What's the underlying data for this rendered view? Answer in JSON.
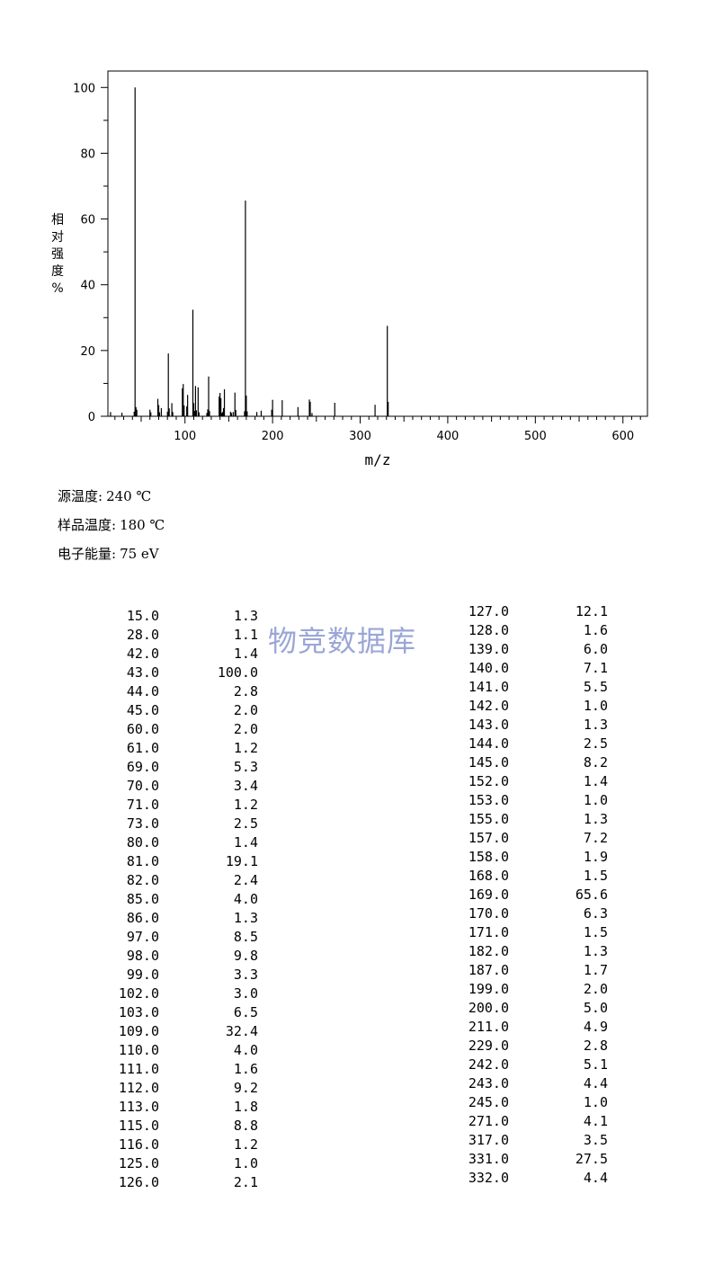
{
  "chart_data": {
    "type": "bar",
    "xlabel": "m/z",
    "ylabel": "相对强度%",
    "xlim": [
      12,
      628
    ],
    "ylim": [
      0,
      105
    ],
    "x_ticks": [
      100,
      200,
      300,
      400,
      500,
      600
    ],
    "y_ticks": [
      0,
      20,
      40,
      60,
      80,
      100
    ],
    "grid": false,
    "peaks": [
      {
        "mz": 15.0,
        "intensity": 1.3
      },
      {
        "mz": 28.0,
        "intensity": 1.1
      },
      {
        "mz": 42.0,
        "intensity": 1.4
      },
      {
        "mz": 43.0,
        "intensity": 100.0
      },
      {
        "mz": 44.0,
        "intensity": 2.8
      },
      {
        "mz": 45.0,
        "intensity": 2.0
      },
      {
        "mz": 60.0,
        "intensity": 2.0
      },
      {
        "mz": 61.0,
        "intensity": 1.2
      },
      {
        "mz": 69.0,
        "intensity": 5.3
      },
      {
        "mz": 70.0,
        "intensity": 3.4
      },
      {
        "mz": 71.0,
        "intensity": 1.2
      },
      {
        "mz": 73.0,
        "intensity": 2.5
      },
      {
        "mz": 80.0,
        "intensity": 1.4
      },
      {
        "mz": 81.0,
        "intensity": 19.1
      },
      {
        "mz": 82.0,
        "intensity": 2.4
      },
      {
        "mz": 85.0,
        "intensity": 4.0
      },
      {
        "mz": 86.0,
        "intensity": 1.3
      },
      {
        "mz": 97.0,
        "intensity": 8.5
      },
      {
        "mz": 98.0,
        "intensity": 9.8
      },
      {
        "mz": 99.0,
        "intensity": 3.3
      },
      {
        "mz": 102.0,
        "intensity": 3.0
      },
      {
        "mz": 103.0,
        "intensity": 6.5
      },
      {
        "mz": 109.0,
        "intensity": 32.4
      },
      {
        "mz": 110.0,
        "intensity": 4.0
      },
      {
        "mz": 111.0,
        "intensity": 1.6
      },
      {
        "mz": 112.0,
        "intensity": 9.2
      },
      {
        "mz": 113.0,
        "intensity": 1.8
      },
      {
        "mz": 115.0,
        "intensity": 8.8
      },
      {
        "mz": 116.0,
        "intensity": 1.2
      },
      {
        "mz": 125.0,
        "intensity": 1.0
      },
      {
        "mz": 126.0,
        "intensity": 2.1
      },
      {
        "mz": 127.0,
        "intensity": 12.1
      },
      {
        "mz": 128.0,
        "intensity": 1.6
      },
      {
        "mz": 139.0,
        "intensity": 6.0
      },
      {
        "mz": 140.0,
        "intensity": 7.1
      },
      {
        "mz": 141.0,
        "intensity": 5.5
      },
      {
        "mz": 142.0,
        "intensity": 1.0
      },
      {
        "mz": 143.0,
        "intensity": 1.3
      },
      {
        "mz": 144.0,
        "intensity": 2.5
      },
      {
        "mz": 145.0,
        "intensity": 8.2
      },
      {
        "mz": 152.0,
        "intensity": 1.4
      },
      {
        "mz": 153.0,
        "intensity": 1.0
      },
      {
        "mz": 155.0,
        "intensity": 1.3
      },
      {
        "mz": 157.0,
        "intensity": 7.2
      },
      {
        "mz": 158.0,
        "intensity": 1.9
      },
      {
        "mz": 168.0,
        "intensity": 1.5
      },
      {
        "mz": 169.0,
        "intensity": 65.6
      },
      {
        "mz": 170.0,
        "intensity": 6.3
      },
      {
        "mz": 171.0,
        "intensity": 1.5
      },
      {
        "mz": 182.0,
        "intensity": 1.3
      },
      {
        "mz": 187.0,
        "intensity": 1.7
      },
      {
        "mz": 199.0,
        "intensity": 2.0
      },
      {
        "mz": 200.0,
        "intensity": 5.0
      },
      {
        "mz": 211.0,
        "intensity": 4.9
      },
      {
        "mz": 229.0,
        "intensity": 2.8
      },
      {
        "mz": 242.0,
        "intensity": 5.1
      },
      {
        "mz": 243.0,
        "intensity": 4.4
      },
      {
        "mz": 245.0,
        "intensity": 1.0
      },
      {
        "mz": 271.0,
        "intensity": 4.1
      },
      {
        "mz": 317.0,
        "intensity": 3.5
      },
      {
        "mz": 331.0,
        "intensity": 27.5
      },
      {
        "mz": 332.0,
        "intensity": 4.4
      }
    ]
  },
  "conditions": {
    "source_temp_label": "源温度:",
    "source_temp_value": "240 ℃",
    "sample_temp_label": "样品温度:",
    "sample_temp_value": "180 ℃",
    "electron_energy_label": "电子能量:",
    "electron_energy_value": "75 eV"
  },
  "watermark": "物竞数据库",
  "table": {
    "left": [
      [
        "15.0",
        "1.3"
      ],
      [
        "28.0",
        "1.1"
      ],
      [
        "42.0",
        "1.4"
      ],
      [
        "43.0",
        "100.0"
      ],
      [
        "44.0",
        "2.8"
      ],
      [
        "45.0",
        "2.0"
      ],
      [
        "60.0",
        "2.0"
      ],
      [
        "61.0",
        "1.2"
      ],
      [
        "69.0",
        "5.3"
      ],
      [
        "70.0",
        "3.4"
      ],
      [
        "71.0",
        "1.2"
      ],
      [
        "73.0",
        "2.5"
      ],
      [
        "80.0",
        "1.4"
      ],
      [
        "81.0",
        "19.1"
      ],
      [
        "82.0",
        "2.4"
      ],
      [
        "85.0",
        "4.0"
      ],
      [
        "86.0",
        "1.3"
      ],
      [
        "97.0",
        "8.5"
      ],
      [
        "98.0",
        "9.8"
      ],
      [
        "99.0",
        "3.3"
      ],
      [
        "102.0",
        "3.0"
      ],
      [
        "103.0",
        "6.5"
      ],
      [
        "109.0",
        "32.4"
      ],
      [
        "110.0",
        "4.0"
      ],
      [
        "111.0",
        "1.6"
      ],
      [
        "112.0",
        "9.2"
      ],
      [
        "113.0",
        "1.8"
      ],
      [
        "115.0",
        "8.8"
      ],
      [
        "116.0",
        "1.2"
      ],
      [
        "125.0",
        "1.0"
      ],
      [
        "126.0",
        "2.1"
      ]
    ],
    "right": [
      [
        "127.0",
        "12.1"
      ],
      [
        "128.0",
        "1.6"
      ],
      [
        "139.0",
        "6.0"
      ],
      [
        "140.0",
        "7.1"
      ],
      [
        "141.0",
        "5.5"
      ],
      [
        "142.0",
        "1.0"
      ],
      [
        "143.0",
        "1.3"
      ],
      [
        "144.0",
        "2.5"
      ],
      [
        "145.0",
        "8.2"
      ],
      [
        "152.0",
        "1.4"
      ],
      [
        "153.0",
        "1.0"
      ],
      [
        "155.0",
        "1.3"
      ],
      [
        "157.0",
        "7.2"
      ],
      [
        "158.0",
        "1.9"
      ],
      [
        "168.0",
        "1.5"
      ],
      [
        "169.0",
        "65.6"
      ],
      [
        "170.0",
        "6.3"
      ],
      [
        "171.0",
        "1.5"
      ],
      [
        "182.0",
        "1.3"
      ],
      [
        "187.0",
        "1.7"
      ],
      [
        "199.0",
        "2.0"
      ],
      [
        "200.0",
        "5.0"
      ],
      [
        "211.0",
        "4.9"
      ],
      [
        "229.0",
        "2.8"
      ],
      [
        "242.0",
        "5.1"
      ],
      [
        "243.0",
        "4.4"
      ],
      [
        "245.0",
        "1.0"
      ],
      [
        "271.0",
        "4.1"
      ],
      [
        "317.0",
        "3.5"
      ],
      [
        "331.0",
        "27.5"
      ],
      [
        "332.0",
        "4.4"
      ]
    ]
  }
}
